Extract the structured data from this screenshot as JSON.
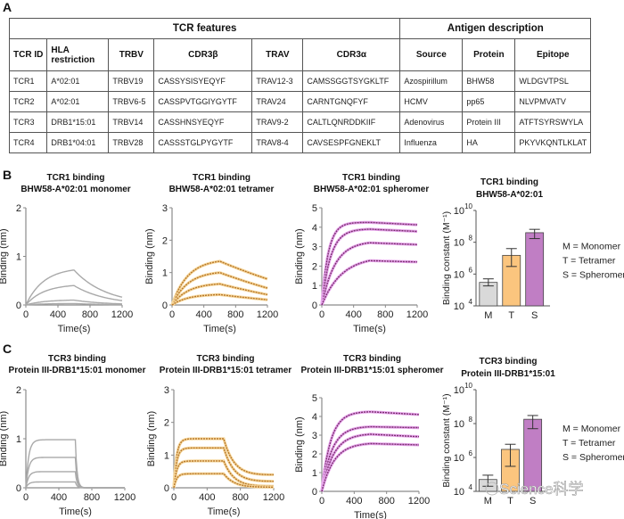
{
  "panels": {
    "A": "A",
    "B": "B",
    "C": "C"
  },
  "table": {
    "group_headers": [
      "TCR features",
      "Antigen description"
    ],
    "columns": [
      "TCR ID",
      "HLA restriction",
      "TRBV",
      "CDR3β",
      "TRAV",
      "CDR3α",
      "Source",
      "Protein",
      "Epitope"
    ],
    "rows": [
      [
        "TCR1",
        "A*02:01",
        "TRBV19",
        "CASSYSISYEQYF",
        "TRAV12-3",
        "CAMSSGGTSYGKLTF",
        "Azospirillum",
        "BHW58",
        "WLDGVTPSL"
      ],
      [
        "TCR2",
        "A*02:01",
        "TRBV6-5",
        "CASSPVTGGIYGYTF",
        "TRAV24",
        "CARNTGNQFYF",
        "HCMV",
        "pp65",
        "NLVPMVATV"
      ],
      [
        "TCR3",
        "DRB1*15:01",
        "TRBV14",
        "CASSHNSYEQYF",
        "TRAV9-2",
        "CALTLQNRDDKIIF",
        "Adenovirus",
        "Protein III",
        "ATFTSYRSWYLA"
      ],
      [
        "TCR4",
        "DRB1*04:01",
        "TRBV28",
        "CASSSTGLPYGYTF",
        "TRAV8-4",
        "CAVSESPFGNEKLT",
        "Influenza",
        "HA",
        "PKYVKQNTLKLAT"
      ]
    ]
  },
  "legend": [
    "M = Monomer",
    "T = Tetramer",
    "S = Spheromer"
  ],
  "watermark": "Science科学",
  "colors": {
    "monomer": "#a9a9a9",
    "tetramer": "#e39a2b",
    "spheromer": "#7a2f6e",
    "monomer_bar": "#d9d9d9",
    "tetramer_bar": "#fbc57e",
    "spheromer_bar": "#c07ec4"
  },
  "chart_data": [
    {
      "id": "B1",
      "type": "line",
      "title": [
        "TCR1 binding",
        "BHW58-A*02:01 monomer"
      ],
      "xlabel": "Time(s)",
      "ylabel": "Binding (nm)",
      "xlim": [
        0,
        1200
      ],
      "ylim": [
        0,
        2
      ],
      "xticks": [
        0,
        400,
        800,
        1200
      ],
      "yticks": [
        0,
        1,
        2
      ],
      "series_color": "monomer",
      "kinetics": {
        "t_assoc_end": 600,
        "kon_rate": 0.0045,
        "koff_rate": 0.0025,
        "plateaus_at_600": [
          0.72,
          0.4,
          0.1,
          0.03
        ]
      }
    },
    {
      "id": "B2",
      "type": "line",
      "title": [
        "TCR1 binding",
        "BHW58-A*02:01 tetramer"
      ],
      "xlabel": "Time(s)",
      "ylabel": "Binding (nm)",
      "xlim": [
        0,
        1200
      ],
      "ylim": [
        0,
        3
      ],
      "xticks": [
        0,
        400,
        800,
        1200
      ],
      "yticks": [
        0,
        1,
        2,
        3
      ],
      "series_color": "tetramer",
      "kinetics": {
        "t_assoc_end": 600,
        "kon_rate": 0.005,
        "koff_rate": 0.0009,
        "plateaus_at_600": [
          1.35,
          1.0,
          0.65,
          0.32
        ],
        "end_values": [
          0.8,
          0.52,
          0.32,
          0.16
        ]
      }
    },
    {
      "id": "B3",
      "type": "line",
      "title": [
        "TCR1 binding",
        "BHW58-A*02:01 spheromer"
      ],
      "xlabel": "Time(s)",
      "ylabel": "Binding (nm)",
      "xlim": [
        0,
        1200
      ],
      "ylim": [
        0,
        5
      ],
      "xticks": [
        0,
        400,
        800,
        1200
      ],
      "yticks": [
        0,
        1,
        2,
        3,
        4,
        5
      ],
      "series_color": "spheromer",
      "kinetics": {
        "t_assoc_end": 600,
        "kon_rates": [
          0.012,
          0.009,
          0.006,
          0.004
        ],
        "koff_rate": 5e-05,
        "plateaus_at_600": [
          4.25,
          3.9,
          3.2,
          2.28
        ]
      }
    },
    {
      "id": "B4",
      "type": "bar",
      "title": [
        "TCR1 binding",
        "BHW58-A*02:01"
      ],
      "ylabel": "Binding constant (M⁻¹)",
      "yscale": "log",
      "ylim": [
        10000,
        10000000000
      ],
      "yticks": [
        "10^4",
        "10^6",
        "10^8",
        "10^10"
      ],
      "categories": [
        "M",
        "T",
        "S"
      ],
      "values": [
        300000,
        15000000,
        400000000
      ],
      "errors_low": [
        180000,
        3000000,
        170000000
      ],
      "errors_high": [
        500000,
        40000000,
        650000000
      ]
    },
    {
      "id": "C1",
      "type": "line",
      "title": [
        "TCR3 binding",
        "Protein III-DRB1*15:01 monomer"
      ],
      "xlabel": "Time(s)",
      "ylabel": "Binding (nm)",
      "xlim": [
        0,
        1200
      ],
      "ylim": [
        0,
        2
      ],
      "xticks": [
        0,
        400,
        800,
        1200
      ],
      "yticks": [
        0,
        1,
        2
      ],
      "series_color": "monomer",
      "kinetics": {
        "t_assoc_end": 600,
        "kon_rate": 0.03,
        "koff_rate": 0.05,
        "plateaus_at_600": [
          0.98,
          0.62,
          0.33,
          0.12
        ]
      }
    },
    {
      "id": "C2",
      "type": "line",
      "title": [
        "TCR3 binding",
        "Protein III-DRB1*15:01 tetramer"
      ],
      "xlabel": "Time(s)",
      "ylabel": "Binding (nm)",
      "xlim": [
        0,
        1200
      ],
      "ylim": [
        0,
        3
      ],
      "xticks": [
        0,
        400,
        800,
        1200
      ],
      "yticks": [
        0,
        1,
        2,
        3
      ],
      "series_color": "tetramer",
      "kinetics": {
        "t_assoc_end": 600,
        "kon_rate": 0.03,
        "koff_rate": 0.008,
        "plateaus_at_600": [
          1.5,
          1.22,
          0.82,
          0.43
        ],
        "end_values": [
          0.4,
          0.2,
          0.05,
          0.02
        ]
      }
    },
    {
      "id": "C3",
      "type": "line",
      "title": [
        "TCR3 binding",
        "Protein III-DRB1*15:01 spheromer"
      ],
      "xlabel": "Time(s)",
      "ylabel": "Binding (nm)",
      "xlim": [
        0,
        1200
      ],
      "ylim": [
        0,
        5
      ],
      "xticks": [
        0,
        400,
        800,
        1200
      ],
      "yticks": [
        0,
        1,
        2,
        3,
        4,
        5
      ],
      "series_color": "spheromer",
      "kinetics": {
        "t_assoc_end": 600,
        "kon_rates": [
          0.009,
          0.008,
          0.007,
          0.0065
        ],
        "koff_rate": 5e-05,
        "plateaus_at_600": [
          4.25,
          3.45,
          3.05,
          2.55
        ],
        "end_values": [
          4.1,
          3.4,
          2.92,
          2.48
        ]
      }
    },
    {
      "id": "C4",
      "type": "bar",
      "title": [
        "TCR3 binding",
        "Protein III-DRB1*15:01"
      ],
      "ylabel": "Binding constant (M⁻¹)",
      "yscale": "log",
      "ylim": [
        10000,
        10000000000
      ],
      "yticks": [
        "10^4",
        "10^6",
        "10^8",
        "10^10"
      ],
      "categories": [
        "M",
        "T",
        "S"
      ],
      "values": [
        50000,
        3000000,
        180000000
      ],
      "errors_low": [
        20000,
        300000,
        50000000
      ],
      "errors_high": [
        90000,
        6000000,
        300000000
      ]
    }
  ]
}
